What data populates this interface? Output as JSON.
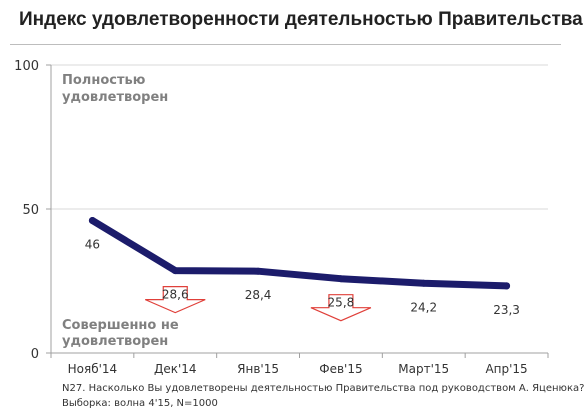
{
  "title": "Индекс удовлетворенности деятельностью Правительства",
  "annotations": {
    "top": [
      "Полностью",
      "удовлетворен"
    ],
    "bottom": [
      "Совершенно не",
      "удовлетворен"
    ]
  },
  "footnotes": {
    "question": "N27. Насколько Вы удовлетворены деятельностью Правительства под руководством А. Яценюка?",
    "sample": "Выборка: волна 4'15, N=1000"
  },
  "colors": {
    "line": "#1c1c6b",
    "grid": "#d9d9d9",
    "axis": "#a0a0a0",
    "annotation": "#808080",
    "arrow": "#e0403a"
  },
  "chart_data": {
    "type": "line",
    "title": "Индекс удовлетворенности деятельностью Правительства",
    "categories": [
      "Нояб'14",
      "Дек'14",
      "Янв'15",
      "Фев'15",
      "Март'15",
      "Апр'15"
    ],
    "series": [
      {
        "values": [
          46,
          28.6,
          28.4,
          25.8,
          24.2,
          23.3
        ]
      }
    ],
    "value_labels": [
      "46",
      "28,6",
      "28,4",
      "25,8",
      "24,2",
      "23,3"
    ],
    "ylim": [
      0,
      100
    ],
    "yticks": [
      0,
      50,
      100
    ],
    "grid": true,
    "legend": "none",
    "decline_markers": [
      "Дек'14",
      "Фев'15"
    ]
  }
}
